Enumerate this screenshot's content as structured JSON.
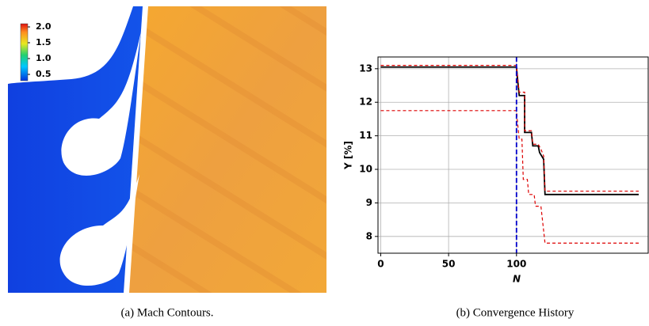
{
  "contour": {
    "caption": "(a) Mach Contours.",
    "colorbar_ticks": [
      {
        "value": 2.0,
        "label": "2.0"
      },
      1.5,
      {
        "value": 1.0,
        "label": "1.0"
      },
      0.5
    ],
    "colorbar_range": [
      0.3,
      2.1
    ]
  },
  "chart_data": [
    {
      "type": "line",
      "caption": "(b) Convergence History",
      "xlabel": "N",
      "ylabel": "Y [%]",
      "xlim": [
        -2,
        197
      ],
      "ylim": [
        7.5,
        13.35
      ],
      "xticks": [
        0,
        50,
        100
      ],
      "yticks": [
        8,
        9,
        10,
        11,
        12,
        13
      ],
      "grid": true,
      "vline": {
        "value": 100,
        "color": "#0000cc"
      },
      "series": [
        {
          "color": "#000000",
          "dash": false,
          "x": [
            0,
            100,
            101,
            102,
            106,
            106,
            111,
            112,
            116,
            117,
            120,
            121,
            190
          ],
          "values": [
            13.05,
            13.05,
            12.6,
            12.2,
            12.2,
            11.1,
            11.1,
            10.7,
            10.7,
            10.5,
            10.3,
            9.25,
            9.25
          ]
        },
        {
          "color": "#dd0000",
          "dash": true,
          "x": [
            0,
            100,
            101,
            102,
            106,
            106,
            111,
            112,
            116,
            118,
            120,
            121,
            190
          ],
          "values": [
            13.1,
            13.1,
            12.7,
            12.3,
            12.3,
            11.15,
            11.15,
            10.75,
            10.75,
            10.6,
            10.4,
            9.35,
            9.35
          ]
        },
        {
          "color": "#dd0000",
          "dash": true,
          "x": [
            0,
            100,
            101,
            102,
            104,
            105,
            108,
            109,
            113,
            114,
            118,
            121,
            190
          ],
          "values": [
            11.75,
            11.75,
            11.3,
            10.9,
            10.9,
            9.7,
            9.7,
            9.25,
            9.25,
            8.9,
            8.9,
            7.8,
            7.8
          ]
        }
      ]
    }
  ]
}
